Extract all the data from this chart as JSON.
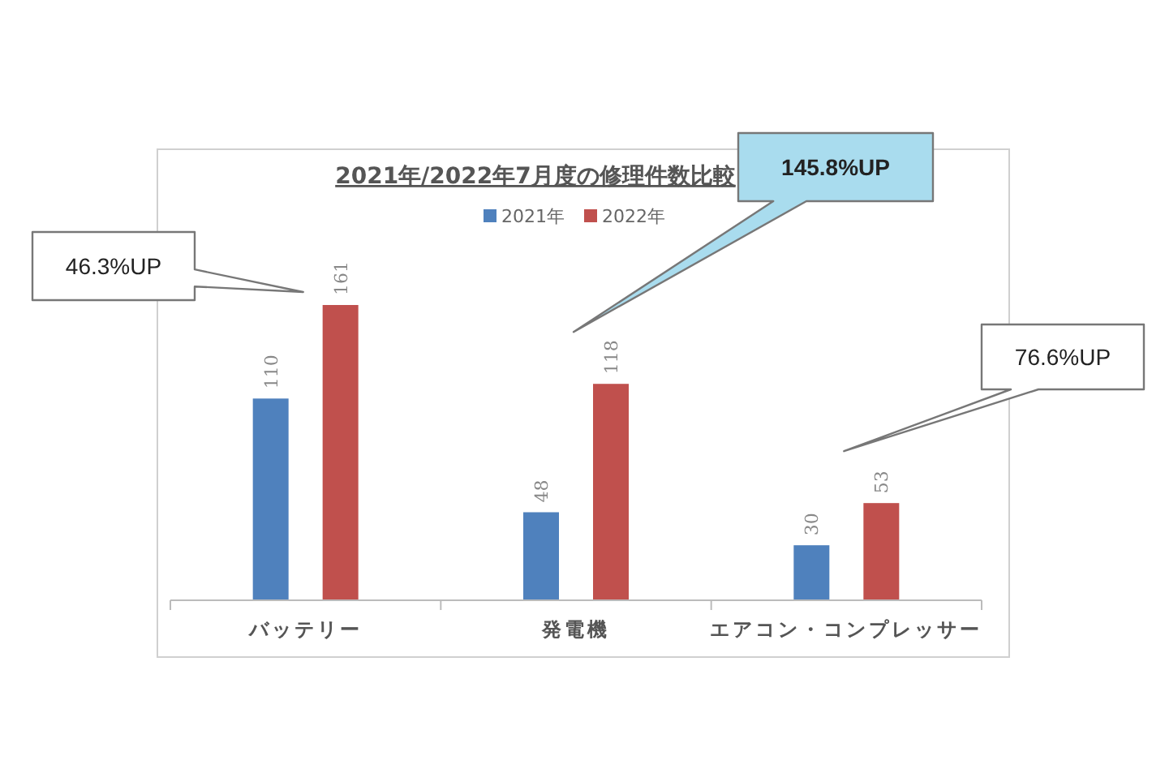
{
  "chart_data": {
    "type": "bar",
    "title": "2021年/2022年7月度の修理件数比較",
    "categories": [
      "バッテリー",
      "発電機",
      "エアコン・コンプレッサー"
    ],
    "series": [
      {
        "name": "2021年",
        "color": "#4f81bd",
        "values": [
          110,
          48,
          30
        ]
      },
      {
        "name": "2022年",
        "color": "#c0504d",
        "values": [
          161,
          118,
          53
        ]
      }
    ],
    "data_labels": true,
    "legend": "top",
    "annotations": [
      "46.3%UP",
      "145.8%UP",
      "76.6%UP"
    ]
  }
}
